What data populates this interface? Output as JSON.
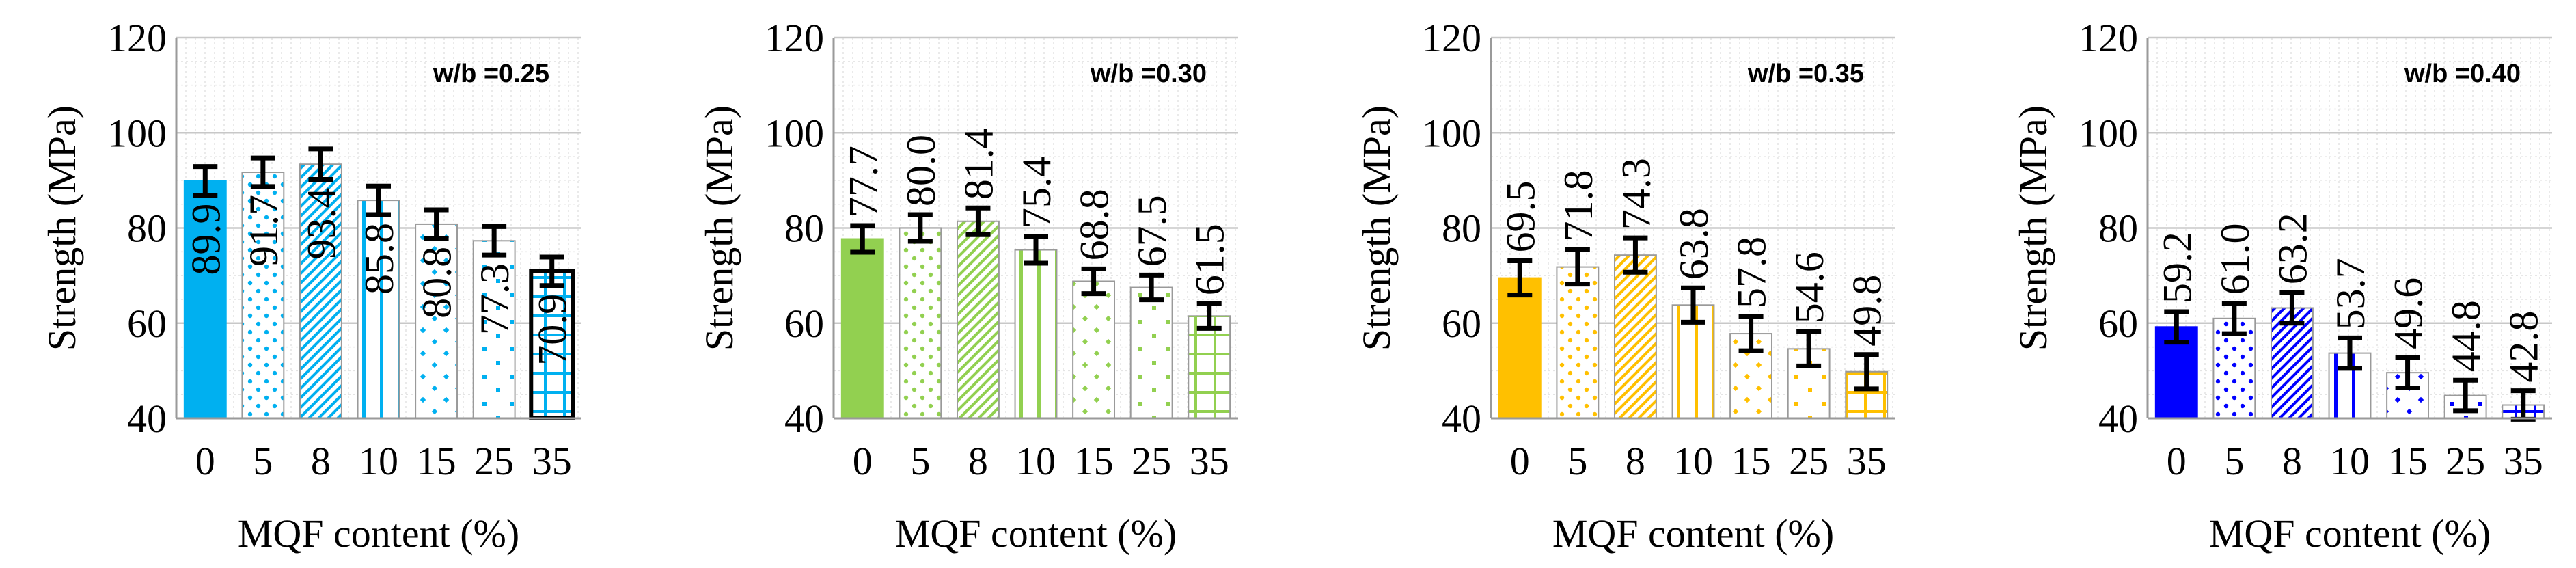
{
  "chart_data": [
    {
      "type": "bar",
      "title": "w/b =0.25",
      "xlabel": "MQF content (%)",
      "ylabel": "Strength (MPa)",
      "categories": [
        "0",
        "5",
        "8",
        "10",
        "15",
        "25",
        "35"
      ],
      "values": [
        89.9,
        91.7,
        93.4,
        85.8,
        80.8,
        77.3,
        70.9
      ],
      "value_labels": [
        "89.9",
        "91.7",
        "93.4",
        "85.8",
        "80.8",
        "77.3",
        "70.9"
      ],
      "error": [
        3.0,
        3.0,
        3.2,
        3.0,
        3.0,
        3.0,
        3.0
      ],
      "ylim": [
        40,
        120
      ],
      "yticks": [
        "40",
        "60",
        "80",
        "100",
        "120"
      ],
      "color": "#00b0f0",
      "label_position": "inside",
      "grid": true
    },
    {
      "type": "bar",
      "title": "w/b =0.30",
      "xlabel": "MQF content (%)",
      "ylabel": "Strength (MPa)",
      "categories": [
        "0",
        "5",
        "8",
        "10",
        "15",
        "25",
        "35"
      ],
      "values": [
        77.7,
        80.0,
        81.4,
        75.4,
        68.8,
        67.5,
        61.5
      ],
      "value_labels": [
        "77.7",
        "80.0",
        "81.4",
        "75.4",
        "68.8",
        "67.5",
        "61.5"
      ],
      "error": [
        2.8,
        2.8,
        2.8,
        2.8,
        2.6,
        2.6,
        2.6
      ],
      "ylim": [
        40,
        120
      ],
      "yticks": [
        "40",
        "60",
        "80",
        "100",
        "120"
      ],
      "color": "#92d050",
      "label_position": "above",
      "grid": true
    },
    {
      "type": "bar",
      "title": "w/b =0.35",
      "xlabel": "MQF content (%)",
      "ylabel": "Strength (MPa)",
      "categories": [
        "0",
        "5",
        "8",
        "10",
        "15",
        "25",
        "35"
      ],
      "values": [
        69.5,
        71.8,
        74.3,
        63.8,
        57.8,
        54.6,
        49.8
      ],
      "value_labels": [
        "69.5",
        "71.8",
        "74.3",
        "63.8",
        "57.8",
        "54.6",
        "49.8"
      ],
      "error": [
        3.6,
        3.6,
        3.6,
        3.6,
        3.6,
        3.6,
        3.6
      ],
      "ylim": [
        40,
        120
      ],
      "yticks": [
        "40",
        "60",
        "80",
        "100",
        "120"
      ],
      "color": "#ffc000",
      "label_position": "above",
      "grid": true
    },
    {
      "type": "bar",
      "title": "w/b =0.40",
      "xlabel": "MQF content (%)",
      "ylabel": "Strength (MPa)",
      "categories": [
        "0",
        "5",
        "8",
        "10",
        "15",
        "25",
        "35"
      ],
      "values": [
        59.2,
        61.0,
        63.2,
        53.7,
        49.6,
        44.8,
        42.8
      ],
      "value_labels": [
        "59.2",
        "61.0",
        "63.2",
        "53.7",
        "49.6",
        "44.8",
        "42.8"
      ],
      "error": [
        3.2,
        3.2,
        3.2,
        3.2,
        3.2,
        3.2,
        3.0
      ],
      "ylim": [
        40,
        120
      ],
      "yticks": [
        "40",
        "60",
        "80",
        "100",
        "120"
      ],
      "color": "#0000ff",
      "label_position": "above",
      "grid": true
    }
  ]
}
